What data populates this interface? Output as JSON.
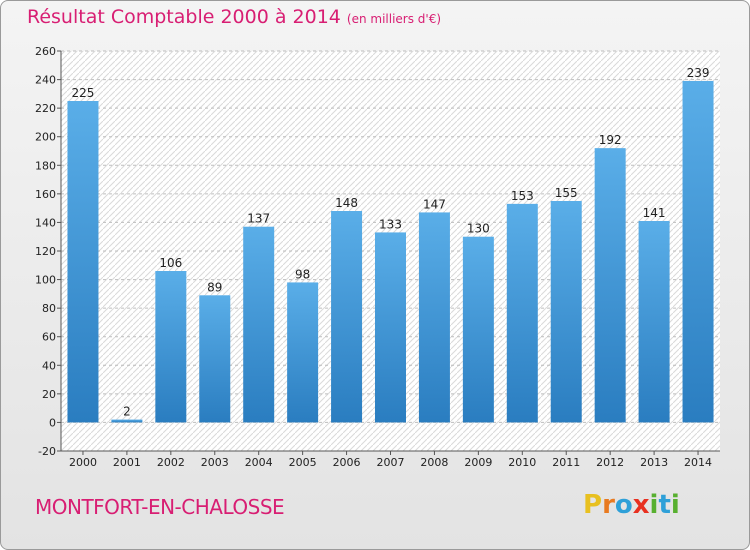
{
  "header": {
    "title": "Résultat Comptable 2000 à 2014",
    "subtitle": "(en milliers d'€)"
  },
  "footer": {
    "commune": "MONTFORT-EN-CHALOSSE",
    "logo_letters": [
      "P",
      "r",
      "o",
      "x",
      "i",
      "t",
      "i"
    ],
    "logo_colors": [
      "#e8c020",
      "#e87a20",
      "#2ea0d8",
      "#e83020",
      "#58b030",
      "#2ea0d8",
      "#58b030"
    ]
  },
  "chart_data": {
    "type": "bar",
    "categories": [
      "2000",
      "2001",
      "2002",
      "2003",
      "2004",
      "2005",
      "2006",
      "2007",
      "2008",
      "2009",
      "2010",
      "2011",
      "2012",
      "2013",
      "2014"
    ],
    "values": [
      225,
      2,
      106,
      89,
      137,
      98,
      148,
      133,
      147,
      130,
      153,
      155,
      192,
      141,
      239
    ],
    "ylim": [
      -20,
      260
    ],
    "yticks": [
      -20,
      0,
      20,
      40,
      60,
      80,
      100,
      120,
      140,
      160,
      180,
      200,
      220,
      240,
      260
    ],
    "grid": true,
    "bar_color_top": "#5aaee8",
    "bar_color_bottom": "#2a7dc0",
    "show_value_labels": true
  }
}
